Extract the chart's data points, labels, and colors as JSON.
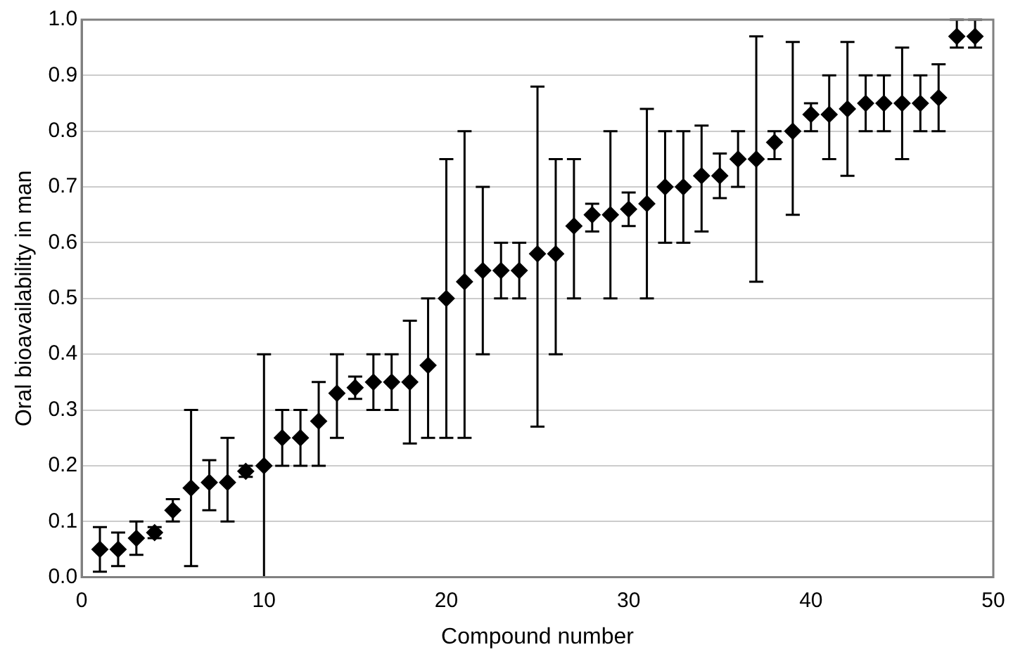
{
  "chart_data": {
    "type": "scatter",
    "xlabel": "Compound number",
    "ylabel": "Oral bioavailability in man",
    "x": [
      1,
      2,
      3,
      4,
      5,
      6,
      7,
      8,
      9,
      10,
      11,
      12,
      13,
      14,
      15,
      16,
      17,
      18,
      19,
      20,
      21,
      22,
      23,
      24,
      25,
      26,
      27,
      28,
      29,
      30,
      31,
      32,
      33,
      34,
      35,
      36,
      37,
      38,
      39,
      40,
      41,
      42,
      43,
      44,
      45,
      46,
      47,
      48,
      49
    ],
    "series": [
      {
        "color": "#000000",
        "values": [
          0.05,
          0.05,
          0.07,
          0.08,
          0.12,
          0.16,
          0.17,
          0.17,
          0.19,
          0.2,
          0.25,
          0.25,
          0.28,
          0.33,
          0.34,
          0.35,
          0.35,
          0.35,
          0.38,
          0.5,
          0.53,
          0.55,
          0.55,
          0.55,
          0.58,
          0.58,
          0.63,
          0.65,
          0.65,
          0.66,
          0.67,
          0.7,
          0.7,
          0.72,
          0.72,
          0.75,
          0.75,
          0.78,
          0.8,
          0.83,
          0.83,
          0.84,
          0.85,
          0.85,
          0.85,
          0.85,
          0.86,
          0.97,
          0.97
        ],
        "errors": [
          [
            0.01,
            0.09
          ],
          [
            0.02,
            0.08
          ],
          [
            0.04,
            0.1
          ],
          [
            0.07,
            0.09
          ],
          [
            0.1,
            0.14
          ],
          [
            0.02,
            0.3
          ],
          [
            0.12,
            0.21
          ],
          [
            0.1,
            0.25
          ],
          [
            0.18,
            0.2
          ],
          [
            0,
            0.4
          ],
          [
            0.2,
            0.3
          ],
          [
            0.2,
            0.3
          ],
          [
            0.2,
            0.35
          ],
          [
            0.25,
            0.4
          ],
          [
            0.32,
            0.36
          ],
          [
            0.3,
            0.4
          ],
          [
            0.3,
            0.4
          ],
          [
            0.24,
            0.46
          ],
          [
            0.25,
            0.5
          ],
          [
            0.25,
            0.75
          ],
          [
            0.25,
            0.8
          ],
          [
            0.4,
            0.7
          ],
          [
            0.5,
            0.6
          ],
          [
            0.5,
            0.6
          ],
          [
            0.27,
            0.88
          ],
          [
            0.4,
            0.75
          ],
          [
            0.5,
            0.75
          ],
          [
            0.62,
            0.67
          ],
          [
            0.5,
            0.8
          ],
          [
            0.63,
            0.69
          ],
          [
            0.5,
            0.84
          ],
          [
            0.6,
            0.8
          ],
          [
            0.6,
            0.8
          ],
          [
            0.62,
            0.81
          ],
          [
            0.68,
            0.76
          ],
          [
            0.7,
            0.8
          ],
          [
            0.53,
            0.97
          ],
          [
            0.75,
            0.8
          ],
          [
            0.65,
            0.96
          ],
          [
            0.8,
            0.85
          ],
          [
            0.75,
            0.9
          ],
          [
            0.72,
            0.96
          ],
          [
            0.8,
            0.9
          ],
          [
            0.8,
            0.9
          ],
          [
            0.75,
            0.95
          ],
          [
            0.8,
            0.9
          ],
          [
            0.8,
            0.92
          ],
          [
            0.95,
            1
          ],
          [
            0.95,
            1
          ]
        ]
      }
    ],
    "xlim": [
      0,
      50
    ],
    "xticks": [
      0,
      10,
      20,
      30,
      40,
      50
    ],
    "ylim": [
      0,
      1
    ],
    "yticks": [
      {
        "value": 0,
        "label": "0.0"
      },
      {
        "value": 0.1,
        "label": "0.1"
      },
      {
        "value": 0.2,
        "label": "0.2"
      },
      {
        "value": 0.3,
        "label": "0.3"
      },
      {
        "value": 0.4,
        "label": "0.4"
      },
      {
        "value": 0.5,
        "label": "0.5"
      },
      {
        "value": 0.6,
        "label": "0.6"
      },
      {
        "value": 0.7,
        "label": "0.7"
      },
      {
        "value": 0.8,
        "label": "0.8"
      },
      {
        "value": 0.9,
        "label": "0.9"
      },
      {
        "value": 1,
        "label": "1.0"
      }
    ],
    "grid": "y",
    "marker": "diamond",
    "legend": false
  }
}
